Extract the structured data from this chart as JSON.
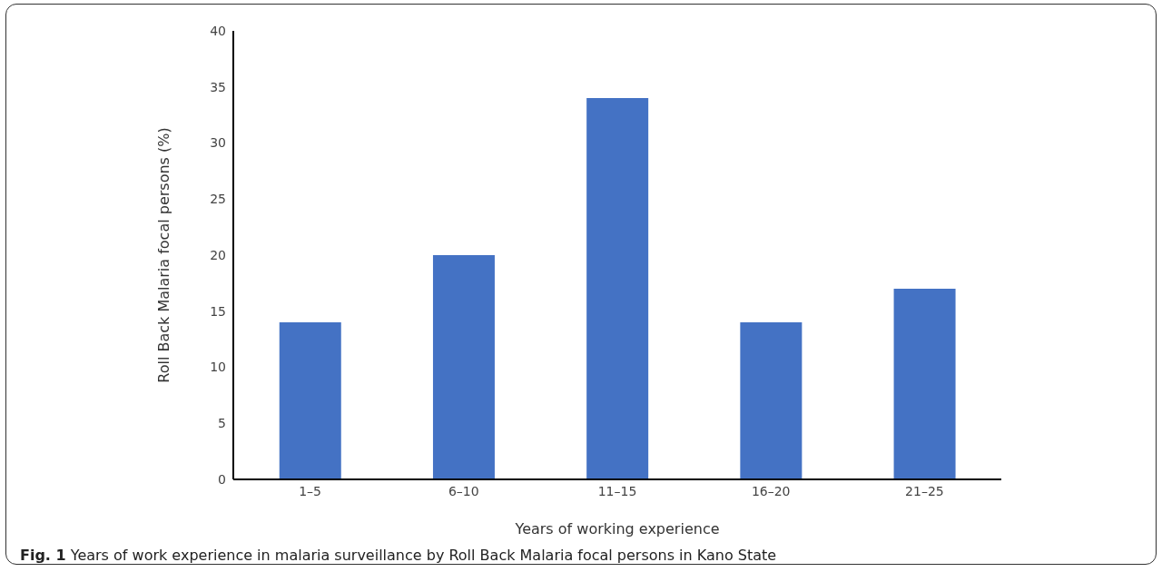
{
  "chart_data": {
    "type": "bar",
    "categories": [
      "1–5",
      "6–10",
      "11–15",
      "16–20",
      "21–25"
    ],
    "values": [
      14,
      20,
      34,
      14,
      17
    ],
    "color": "#4472c4",
    "ylim": [
      0,
      40
    ],
    "yticks": [
      0,
      5,
      10,
      15,
      20,
      25,
      30,
      35,
      40
    ],
    "xlabel": "Years of working experience",
    "ylabel": "Roll Back Malaria focal persons  (%)",
    "annotations": [
      "Fig. 1",
      "Years of work experience in malaria surveillance by Roll Back Malaria focal persons in Kano State"
    ],
    "grid": false,
    "legend": false
  }
}
